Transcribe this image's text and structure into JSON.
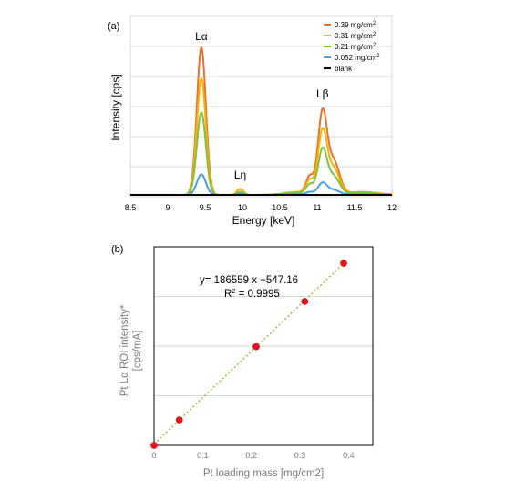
{
  "chart_data": [
    {
      "panel_label": "(a)",
      "type": "line",
      "xlabel": "Energy [keV]",
      "ylabel": "Intensity [cps]",
      "xlim": [
        8.5,
        12
      ],
      "x_ticks": [
        "8.5",
        "9",
        "9.5",
        "10",
        "10.5",
        "11",
        "11.5",
        "12"
      ],
      "grid": true,
      "legend_position": "top-right",
      "annotations": [
        {
          "text": "Lα",
          "x": 9.45
        },
        {
          "text": "Lη",
          "x": 9.97
        },
        {
          "text": "Lβ",
          "x": 11.07
        }
      ],
      "legend_units": "mg/cm",
      "legend_superscript": "2",
      "series": [
        {
          "name": "0.39",
          "color": "#e8712b",
          "values": [
            0,
            1.0,
            0.01,
            0.62,
            0.02
          ]
        },
        {
          "name": "0.31",
          "color": "#f5b400",
          "values": [
            0,
            0.79,
            0.01,
            0.48,
            0.02
          ]
        },
        {
          "name": "0.21",
          "color": "#7fc241",
          "values": [
            0,
            0.56,
            0.005,
            0.34,
            0.015
          ]
        },
        {
          "name": "0.052",
          "color": "#4a9fd6",
          "values": [
            0,
            0.14,
            0.002,
            0.09,
            0.005
          ]
        },
        {
          "name": "blank",
          "color": "#000000",
          "values": [
            0,
            0,
            0,
            0,
            0
          ]
        }
      ],
      "peak_profile_x": [
        8.5,
        9.45,
        9.97,
        11.07,
        12
      ]
    },
    {
      "panel_label": "(b)",
      "type": "scatter",
      "xlabel": "Pt loading mass [mg/cm2]",
      "ylabel_line1": "Pt Lα ROI intensity*",
      "ylabel_line2": "[cps/mA]",
      "xlim": [
        0,
        0.45
      ],
      "x_ticks": [
        "0",
        "0.1",
        "0.2",
        "0.3",
        "0.4"
      ],
      "ylim": [
        0,
        80000
      ],
      "grid": true,
      "equation": "y= 186559 x +547.16",
      "r2_label": "R",
      "r2_sup": "2",
      "r2_value": " = 0.9995",
      "points": [
        {
          "x": 0,
          "y": 0
        },
        {
          "x": 0.052,
          "y": 10250
        },
        {
          "x": 0.21,
          "y": 39750
        },
        {
          "x": 0.31,
          "y": 58000
        },
        {
          "x": 0.39,
          "y": 73400
        }
      ],
      "point_color": "#e8131b",
      "trendline_color": "#7fc241",
      "slope": 186559,
      "intercept": 547.16
    }
  ]
}
